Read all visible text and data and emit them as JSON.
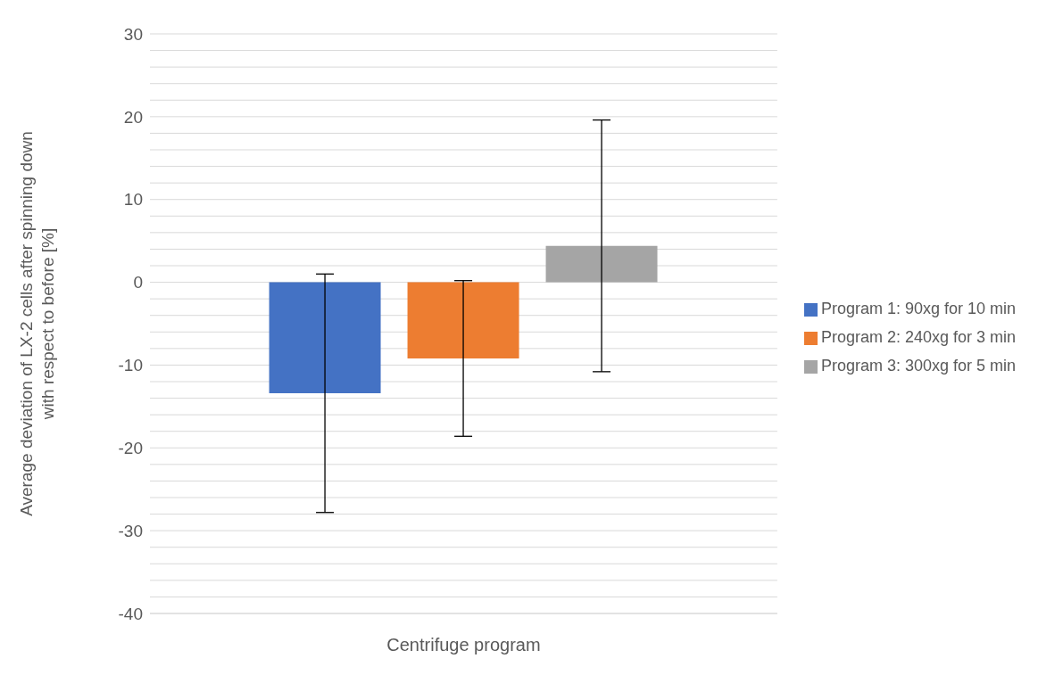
{
  "chart_data": {
    "type": "bar",
    "xlabel": "Centrifuge program",
    "ylabel": "Average deviation of LX-2 cells after spinning down with respect to before [%]",
    "categories": [
      null
    ],
    "series": [
      {
        "name": "Program 1: 90xg for 10 min",
        "color": "#4472c4",
        "values": [
          -13.4
        ],
        "errors": [
          14.4
        ]
      },
      {
        "name": "Program 2: 240xg for 3 min",
        "color": "#ed7d31",
        "values": [
          -9.2
        ],
        "errors": [
          9.4
        ]
      },
      {
        "name": "Program 3: 300xg for 5 min",
        "color": "#a5a5a5",
        "values": [
          4.4
        ],
        "errors": [
          15.2
        ]
      }
    ],
    "ylim": [
      -40,
      30
    ],
    "yticks": [
      -40,
      {
        "value": -38,
        "label": null
      },
      {
        "value": -36,
        "label": null
      },
      {
        "value": -34,
        "label": null
      },
      {
        "value": -32,
        "label": null
      },
      -30,
      {
        "value": -28,
        "label": null
      },
      {
        "value": -26,
        "label": null
      },
      {
        "value": -24,
        "label": null
      },
      {
        "value": -22,
        "label": null
      },
      -20,
      {
        "value": -18,
        "label": null
      },
      {
        "value": -16,
        "label": null
      },
      {
        "value": -14,
        "label": null
      },
      {
        "value": -12,
        "label": null
      },
      -10,
      {
        "value": -8,
        "label": null
      },
      {
        "value": -6,
        "label": null
      },
      {
        "value": -4,
        "label": null
      },
      {
        "value": -2,
        "label": null
      },
      0,
      {
        "value": 2,
        "label": null
      },
      {
        "value": 4,
        "label": null
      },
      {
        "value": 6,
        "label": null
      },
      {
        "value": 8,
        "label": null
      },
      10,
      {
        "value": 12,
        "label": null
      },
      {
        "value": 14,
        "label": null
      },
      {
        "value": 16,
        "label": null
      },
      {
        "value": 18,
        "label": null
      },
      20,
      {
        "value": 22,
        "label": null
      },
      {
        "value": 24,
        "label": null
      },
      {
        "value": 26,
        "label": null
      },
      {
        "value": 28,
        "label": null
      },
      30
    ],
    "grid": "y",
    "legend": "right"
  }
}
